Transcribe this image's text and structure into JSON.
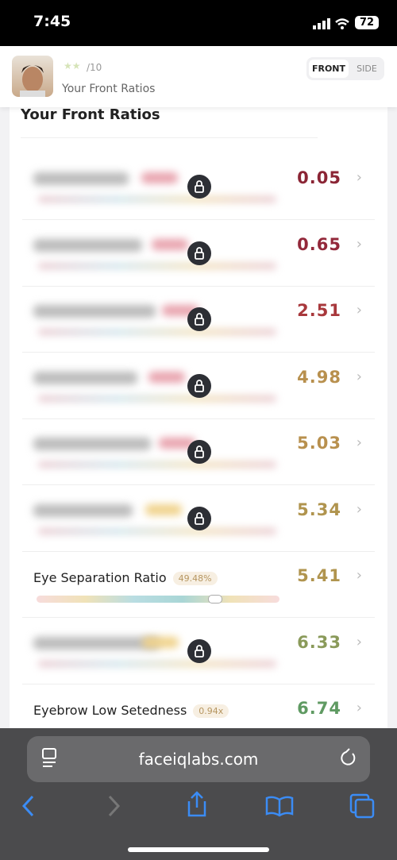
{
  "status_bar": {
    "time": "7:45",
    "battery": "72"
  },
  "header": {
    "rating_suffix": "/10",
    "subtitle": "Your Front Ratios",
    "tabs": [
      "FRONT",
      "SIDE"
    ]
  },
  "section_title": "Your Front Ratios",
  "rows": [
    {
      "score": "0.05",
      "color": "#8b2535",
      "locked": true
    },
    {
      "score": "0.65",
      "color": "#93283a",
      "locked": true
    },
    {
      "score": "2.51",
      "color": "#a8383c",
      "locked": true
    },
    {
      "score": "4.98",
      "color": "#b8904e",
      "locked": true
    },
    {
      "score": "5.03",
      "color": "#b8904e",
      "locked": true
    },
    {
      "score": "5.34",
      "color": "#b0944e",
      "locked": true
    },
    {
      "name": "Eye Separation Ratio",
      "badge": "49.48%",
      "score": "5.41",
      "color": "#b0944e",
      "locked": false
    },
    {
      "score": "6.33",
      "color": "#8a9a5a",
      "locked": true
    },
    {
      "name": "Eyebrow Low Setedness",
      "badge": "0.94x",
      "score": "6.74",
      "color": "#5f9a62",
      "locked": false
    }
  ],
  "browser": {
    "url": "faceiqlabs.com"
  }
}
